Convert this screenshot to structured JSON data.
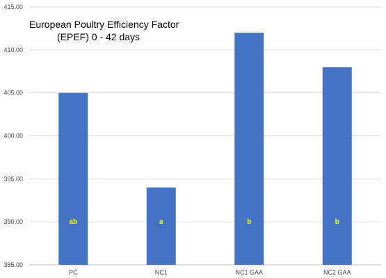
{
  "chart_data": {
    "type": "bar",
    "title_line1": "European Poultry Efficiency Factor",
    "title_line2": "(EPEF) 0 - 42 days",
    "categories": [
      "PC",
      "NC1",
      "NC1 GAA",
      "NC2 GAA"
    ],
    "values": [
      405,
      394,
      412,
      408
    ],
    "significance_labels": [
      "ab",
      "a",
      "b",
      "b"
    ],
    "ylim": [
      385,
      415
    ],
    "yticks": [
      "385.00",
      "390.00",
      "395.00",
      "400.00",
      "405.00",
      "410.00",
      "415.00"
    ],
    "xlabel": "",
    "ylabel": "",
    "grid": "horizontal",
    "legend": "none",
    "colors": {
      "bar": "#4472C4",
      "label": "#FFFF00",
      "grid": "#D9D9D9",
      "axis": "#BFBFBF"
    }
  }
}
